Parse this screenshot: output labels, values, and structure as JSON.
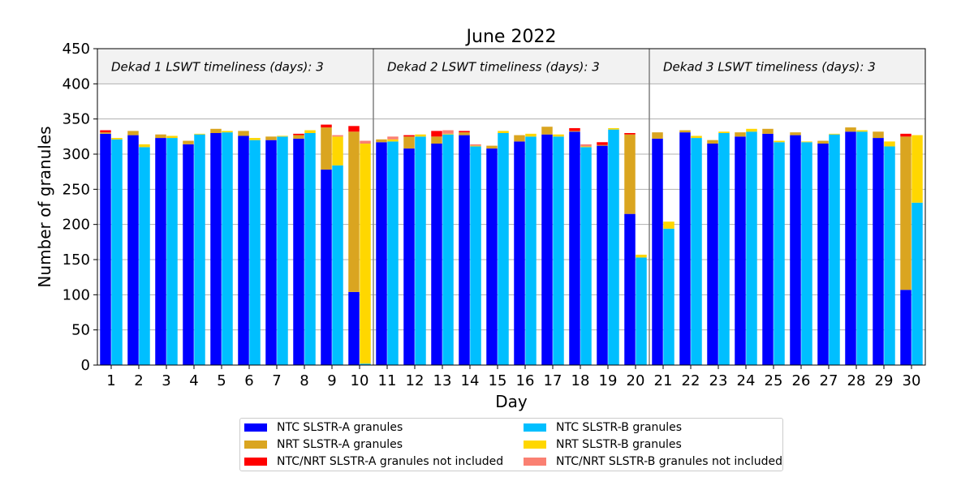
{
  "chart_data": {
    "type": "bar",
    "title": "June 2022",
    "xlabel": "Day",
    "ylabel": "Number of granules",
    "ylim": [
      0,
      450
    ],
    "yticks": [
      0,
      50,
      100,
      150,
      200,
      250,
      300,
      350,
      400,
      450
    ],
    "categories": [
      "1",
      "2",
      "3",
      "4",
      "5",
      "6",
      "7",
      "8",
      "9",
      "10",
      "11",
      "12",
      "13",
      "14",
      "15",
      "16",
      "17",
      "18",
      "19",
      "20",
      "21",
      "22",
      "23",
      "24",
      "25",
      "26",
      "27",
      "28",
      "29",
      "30"
    ],
    "grid": "horizontal",
    "legend_position": "below",
    "shaded_band": [
      400,
      450
    ],
    "dekad_annotations": [
      {
        "text": "Dekad 1 LSWT timeliness (days): 3"
      },
      {
        "text": "Dekad 2 LSWT timeliness (days): 3"
      },
      {
        "text": "Dekad 3 LSWT timeliness (days): 3"
      }
    ],
    "dekad_dividers_after_day": [
      10,
      20
    ],
    "series_a": [
      {
        "name": "NTC SLSTR-A granules",
        "color": "#0000ff",
        "values": [
          329,
          327,
          323,
          314,
          330,
          326,
          320,
          322,
          278,
          104,
          317,
          308,
          315,
          327,
          308,
          318,
          328,
          332,
          312,
          215,
          322,
          331,
          315,
          325,
          329,
          327,
          315,
          332,
          323,
          107
        ]
      },
      {
        "name": "NRT SLSTR-A granules",
        "color": "#daa520",
        "values": [
          2,
          6,
          5,
          5,
          6,
          7,
          5,
          5,
          60,
          228,
          4,
          17,
          10,
          4,
          4,
          9,
          11,
          1,
          1,
          113,
          9,
          3,
          5,
          6,
          7,
          4,
          4,
          6,
          9,
          218
        ]
      },
      {
        "name": "NTC/NRT SLSTR-A granules not included",
        "color": "#ff0000",
        "values": [
          3,
          0,
          0,
          0,
          0,
          0,
          0,
          2,
          4,
          8,
          0,
          2,
          8,
          2,
          0,
          0,
          0,
          4,
          4,
          2,
          0,
          0,
          0,
          0,
          0,
          0,
          0,
          0,
          0,
          4
        ]
      }
    ],
    "series_b": [
      {
        "name": "NTC SLSTR-B granules",
        "color": "#00bfff",
        "values": [
          321,
          310,
          323,
          328,
          331,
          320,
          325,
          330,
          284,
          2,
          318,
          325,
          328,
          311,
          330,
          325,
          325,
          310,
          335,
          153,
          194,
          323,
          330,
          332,
          317,
          317,
          328,
          332,
          311,
          231
        ]
      },
      {
        "name": "NRT SLSTR-B granules",
        "color": "#ffd700",
        "values": [
          2,
          4,
          3,
          1,
          2,
          3,
          1,
          4,
          41,
          313,
          3,
          3,
          1,
          1,
          3,
          4,
          3,
          1,
          2,
          4,
          10,
          3,
          2,
          4,
          2,
          1,
          1,
          2,
          7,
          96
        ]
      },
      {
        "name": "NTC/NRT SLSTR-B granules not included",
        "color": "#fa8072",
        "values": [
          0,
          0,
          0,
          0,
          0,
          0,
          0,
          0,
          2,
          4,
          4,
          0,
          5,
          2,
          0,
          0,
          0,
          3,
          0,
          0,
          0,
          0,
          0,
          0,
          0,
          0,
          0,
          0,
          0,
          0
        ]
      }
    ]
  }
}
